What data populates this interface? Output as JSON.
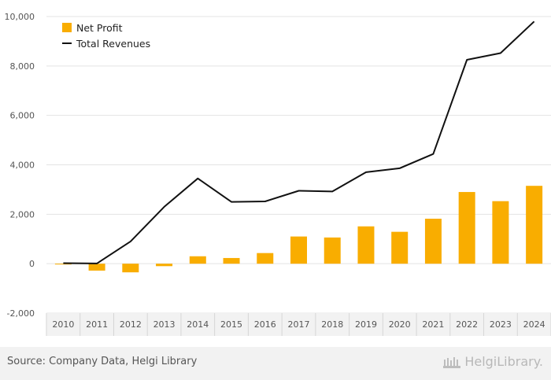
{
  "chart_data": {
    "type": "bar",
    "categories": [
      "2010",
      "2011",
      "2012",
      "2013",
      "2014",
      "2015",
      "2016",
      "2017",
      "2018",
      "2019",
      "2020",
      "2021",
      "2022",
      "2023",
      "2024"
    ],
    "series": [
      {
        "name": "Net Profit",
        "type": "bar",
        "color": "#f9ad00",
        "values": [
          -20,
          -280,
          -350,
          -100,
          300,
          230,
          430,
          1100,
          1060,
          1510,
          1290,
          1820,
          2900,
          2530,
          3150
        ]
      },
      {
        "name": "Total Revenues",
        "type": "line",
        "color": "#111111",
        "values": [
          20,
          10,
          900,
          2300,
          3450,
          2500,
          2520,
          2950,
          2920,
          3700,
          3860,
          4440,
          8250,
          8520,
          9800
        ]
      }
    ],
    "ylim": [
      -2000,
      10000
    ],
    "yticks": [
      "-2,000",
      "0",
      "2,000",
      "4,000",
      "6,000",
      "8,000",
      "10,000"
    ],
    "ytick_values": [
      -2000,
      0,
      2000,
      4000,
      6000,
      8000,
      10000
    ],
    "grid": true,
    "legend_placement": "top-left",
    "title": "",
    "xlabel": "",
    "ylabel": ""
  },
  "footer": {
    "source": "Source: Company Data, Helgi Library",
    "logo_text": "HelgiLibrary."
  }
}
